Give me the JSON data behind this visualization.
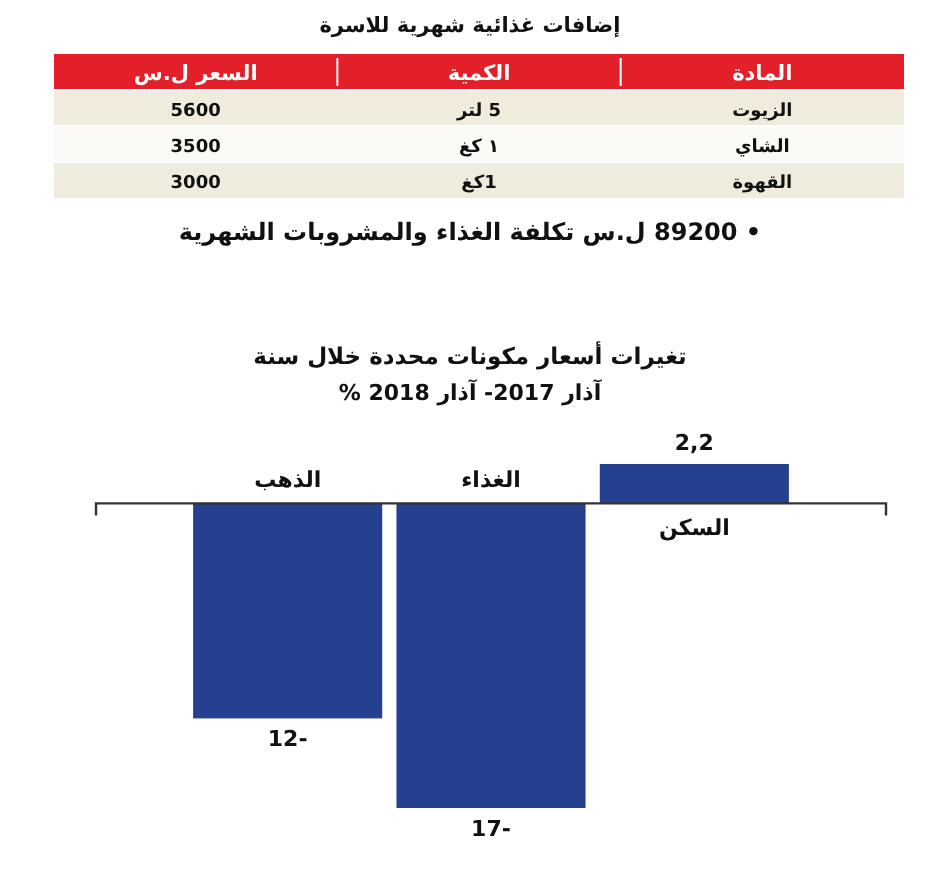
{
  "chart_data": [
    {
      "type": "other",
      "title": "إضافات غذائية شهرية للاسرة",
      "categories": [
        "السعر ل.س",
        "الكمية",
        "المادة"
      ],
      "cell_labels": [
        [
          "5600",
          "5 لتر",
          "الزيوت"
        ],
        [
          "3500",
          "١ كغ",
          "الشاي"
        ],
        [
          "3000",
          "1كغ",
          "القهوة"
        ]
      ],
      "annotations": [
        "• 89200 ل.س تكلفة الغذاء والمشروبات الشهرية"
      ]
    },
    {
      "type": "bar",
      "title": "تغيرات أسعار مكونات محددة خلال سنة",
      "subtitle": "آذار 2017- آذار 2018 %",
      "categories": [
        "الذهب",
        "الغذاء",
        "السكن"
      ],
      "values": [
        -12,
        -17,
        2.2
      ],
      "value_labels": [
        "-12",
        "-17",
        "2,2"
      ],
      "color": "#24408e"
    }
  ]
}
